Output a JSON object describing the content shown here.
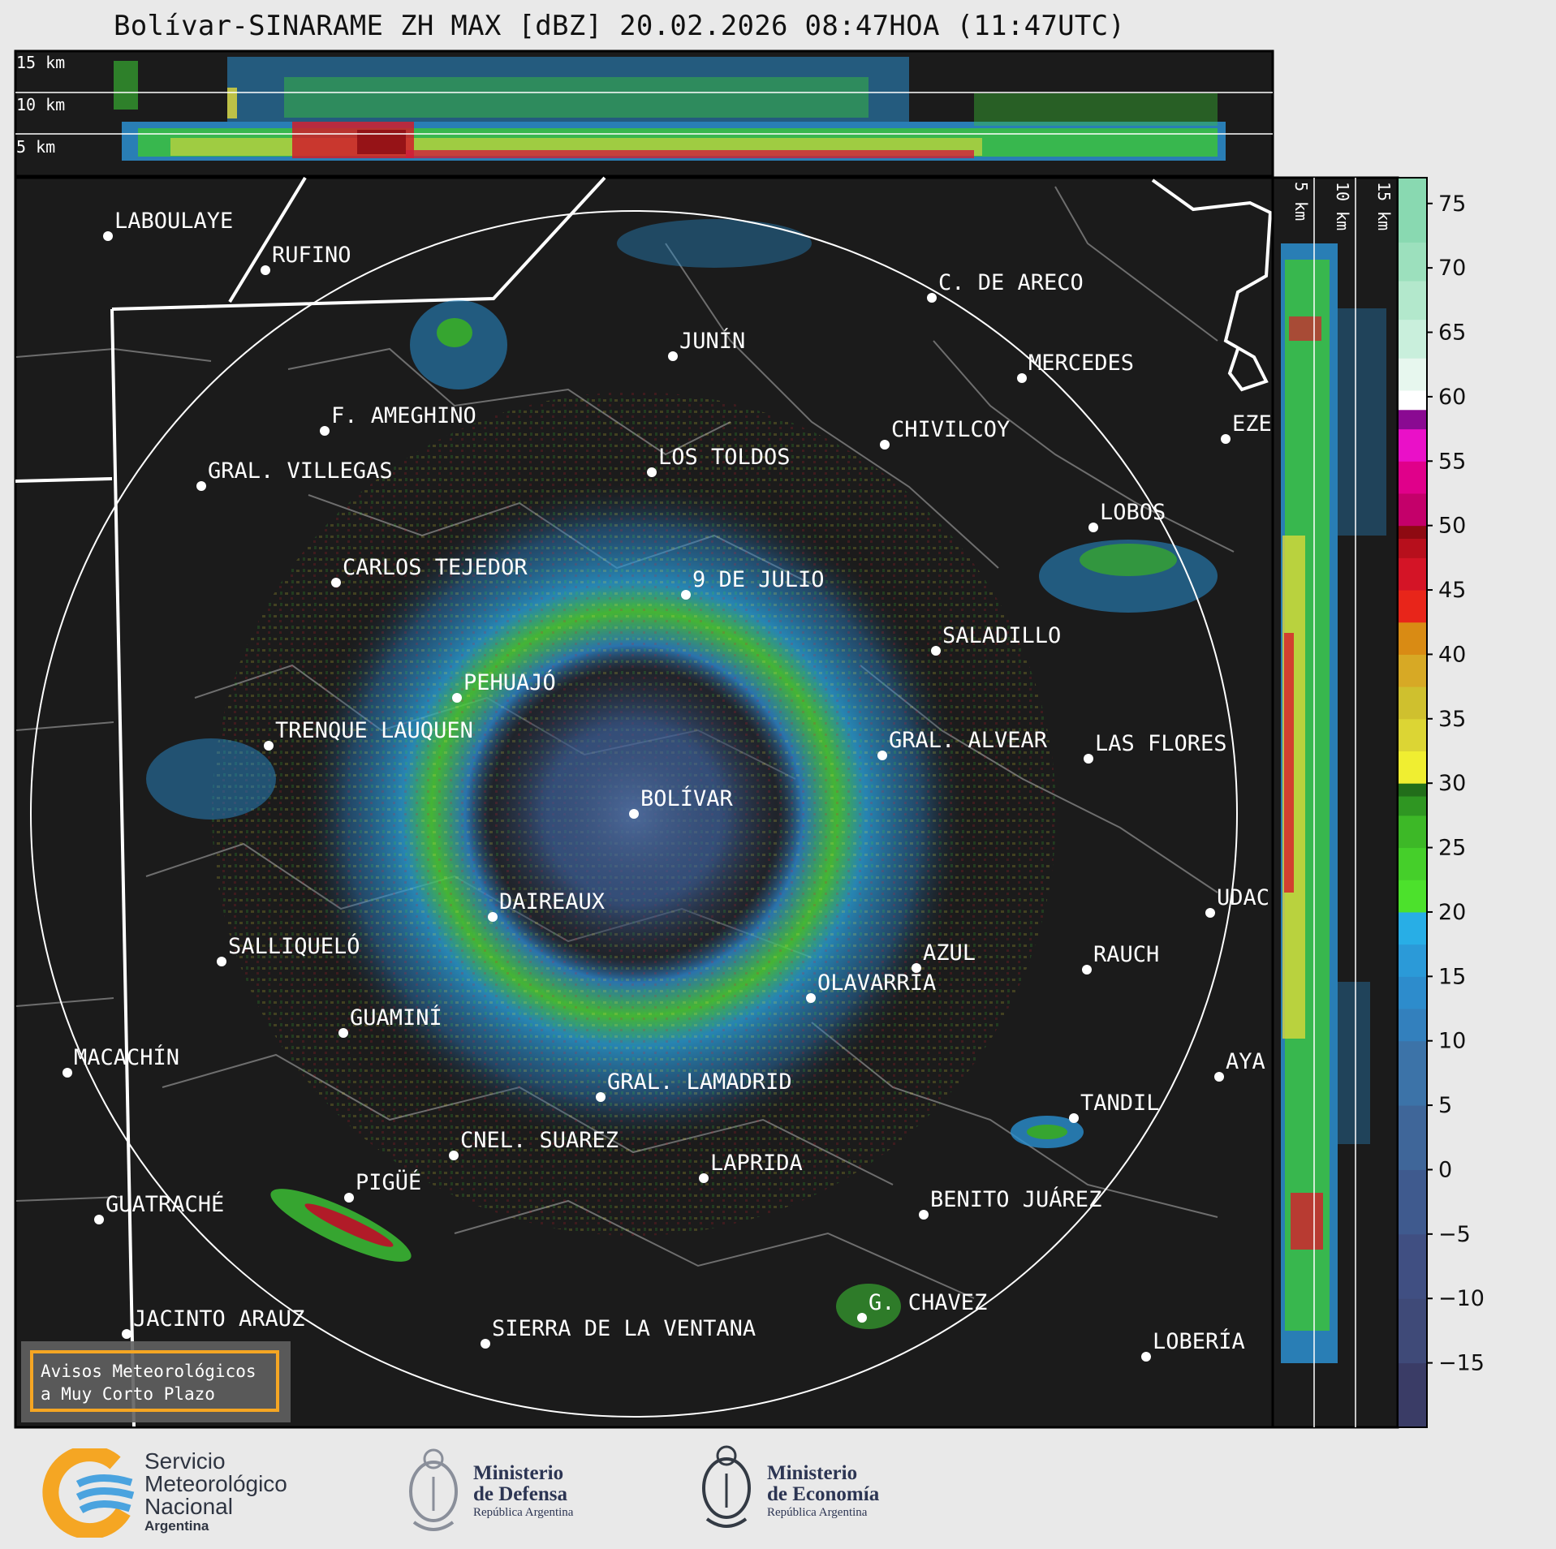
{
  "title": "Bolívar-SINARAME ZH MAX [dBZ] 20.02.2026 08:47HOA (11:47UTC)",
  "top_panel": {
    "height_labels": [
      "15 km",
      "10 km",
      "5 km"
    ]
  },
  "right_panel": {
    "height_labels": [
      "5 km",
      "10 km",
      "15 km"
    ]
  },
  "colorbar": {
    "unit": "dBZ",
    "ticks": [
      "75",
      "70",
      "65",
      "60",
      "55",
      "50",
      "45",
      "40",
      "35",
      "30",
      "25",
      "20",
      "15",
      "10",
      "5",
      "0",
      "−5",
      "−10",
      "−15"
    ]
  },
  "cities": [
    {
      "name": "LABOULAYE"
    },
    {
      "name": "RUFINO"
    },
    {
      "name": "C. DE ARECO"
    },
    {
      "name": "JUNÍN"
    },
    {
      "name": "MERCEDES"
    },
    {
      "name": "F. AMEGHINO"
    },
    {
      "name": "CHIVILCOY"
    },
    {
      "name": "EZE"
    },
    {
      "name": "GRAL. VILLEGAS"
    },
    {
      "name": "LOS TOLDOS"
    },
    {
      "name": "LOBOS"
    },
    {
      "name": "CARLOS TEJEDOR"
    },
    {
      "name": "9 DE JULIO"
    },
    {
      "name": "SALADILLO"
    },
    {
      "name": "PEHUAJÓ"
    },
    {
      "name": "TRENQUE LAUQUEN"
    },
    {
      "name": "GRAL. ALVEAR"
    },
    {
      "name": "LAS FLORES"
    },
    {
      "name": "BOLÍVAR"
    },
    {
      "name": "DAIREAUX"
    },
    {
      "name": "UDAC"
    },
    {
      "name": "SALLIQUELÓ"
    },
    {
      "name": "AZUL"
    },
    {
      "name": "RAUCH"
    },
    {
      "name": "OLAVARRÍA"
    },
    {
      "name": "GUAMINÍ"
    },
    {
      "name": "MACACHÍN"
    },
    {
      "name": "AYA"
    },
    {
      "name": "GRAL. LAMADRID"
    },
    {
      "name": "TANDIL"
    },
    {
      "name": "CNEL. SUAREZ"
    },
    {
      "name": "LAPRIDA"
    },
    {
      "name": "PIGÜÉ"
    },
    {
      "name": "GUATRACHÉ"
    },
    {
      "name": "BENITO JUÁREZ"
    },
    {
      "name": "G. CHAVEZ"
    },
    {
      "name": "JACINTO ARAUZ"
    },
    {
      "name": "SIERRA DE LA VENTANA"
    },
    {
      "name": "LOBERÍA"
    }
  ],
  "alert_box": {
    "line1": "Avisos Meteorológicos",
    "line2": "a Muy Corto Plazo"
  },
  "logos": {
    "smn": {
      "line1": "Servicio",
      "line2": "Meteorológico",
      "line3": "Nacional",
      "line4": "Argentina"
    },
    "defensa": {
      "line1": "Ministerio",
      "line2": "de Defensa",
      "line3": "República Argentina"
    },
    "economia": {
      "line1": "Ministerio",
      "line2": "de Economía",
      "line3": "República Argentina"
    }
  },
  "colors": {
    "map_bg": "#1b1b1b",
    "frame": "#000000",
    "page_bg": "#e9e9e9",
    "accent_orange": "#f5a623"
  }
}
